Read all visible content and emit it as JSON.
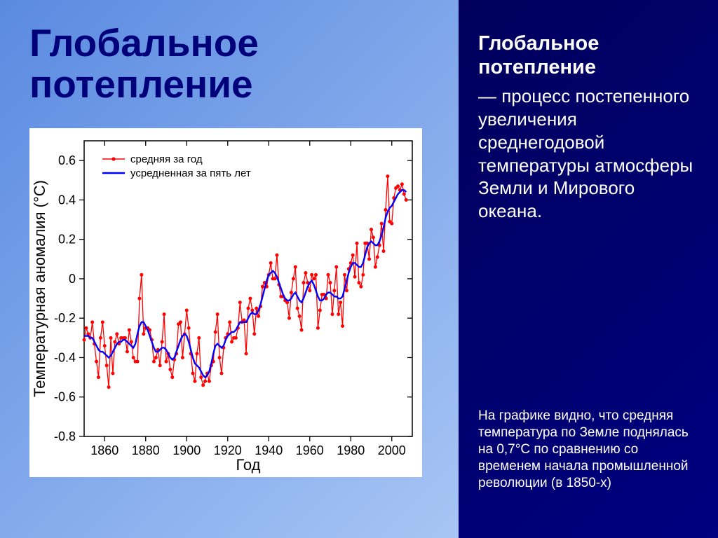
{
  "main_title": "Глобальное потепление",
  "sub_title": "Глобальное потепление",
  "definition_suffix": " — процесс постепенного увеличения среднегодовой температуры атмосферы Земли и Мирового океана.",
  "caption": "На графике видно, что средняя температура по Земле поднялась на 0,7°С по сравнению со временем начала промышленной революции (в 1850-х)",
  "chart": {
    "type": "line",
    "ylabel": "Температурная аномалия (°C)",
    "xlabel": "Год",
    "legend": {
      "series_a": "средняя за год",
      "series_b": "усредненная за пять лет"
    },
    "xlim": [
      1850,
      2010
    ],
    "ylim": [
      -0.8,
      0.7
    ],
    "xticks": [
      1860,
      1880,
      1900,
      1920,
      1940,
      1960,
      1980,
      2000
    ],
    "yticks": [
      -0.8,
      -0.6,
      -0.4,
      -0.2,
      0,
      0.2,
      0.4,
      0.6
    ],
    "colors": {
      "annual": "#ff0000",
      "smoothed": "#0000ff",
      "axis": "#000000",
      "background": "#ffffff",
      "marker_fill": "#ff0000"
    },
    "line_width_annual": 1.3,
    "line_width_smooth": 2.4,
    "marker_radius": 2.2,
    "data": {
      "years": [
        1850,
        1851,
        1852,
        1853,
        1854,
        1855,
        1856,
        1857,
        1858,
        1859,
        1860,
        1861,
        1862,
        1863,
        1864,
        1865,
        1866,
        1867,
        1868,
        1869,
        1870,
        1871,
        1872,
        1873,
        1874,
        1875,
        1876,
        1877,
        1878,
        1879,
        1880,
        1881,
        1882,
        1883,
        1884,
        1885,
        1886,
        1887,
        1888,
        1889,
        1890,
        1891,
        1892,
        1893,
        1894,
        1895,
        1896,
        1897,
        1898,
        1899,
        1900,
        1901,
        1902,
        1903,
        1904,
        1905,
        1906,
        1907,
        1908,
        1909,
        1910,
        1911,
        1912,
        1913,
        1914,
        1915,
        1916,
        1917,
        1918,
        1919,
        1920,
        1921,
        1922,
        1923,
        1924,
        1925,
        1926,
        1927,
        1928,
        1929,
        1930,
        1931,
        1932,
        1933,
        1934,
        1935,
        1936,
        1937,
        1938,
        1939,
        1940,
        1941,
        1942,
        1943,
        1944,
        1945,
        1946,
        1947,
        1948,
        1949,
        1950,
        1951,
        1952,
        1953,
        1954,
        1955,
        1956,
        1957,
        1958,
        1959,
        1960,
        1961,
        1962,
        1963,
        1964,
        1965,
        1966,
        1967,
        1968,
        1969,
        1970,
        1971,
        1972,
        1973,
        1974,
        1975,
        1976,
        1977,
        1978,
        1979,
        1980,
        1981,
        1982,
        1983,
        1984,
        1985,
        1986,
        1987,
        1988,
        1989,
        1990,
        1991,
        1992,
        1993,
        1994,
        1995,
        1996,
        1997,
        1998,
        1999,
        2000,
        2001,
        2002,
        2003,
        2004,
        2005,
        2006,
        2007
      ],
      "annual": [
        -0.31,
        -0.25,
        -0.28,
        -0.3,
        -0.22,
        -0.33,
        -0.42,
        -0.5,
        -0.3,
        -0.22,
        -0.34,
        -0.44,
        -0.55,
        -0.3,
        -0.48,
        -0.32,
        -0.28,
        -0.33,
        -0.3,
        -0.3,
        -0.3,
        -0.37,
        -0.26,
        -0.32,
        -0.4,
        -0.42,
        -0.42,
        -0.1,
        0.02,
        -0.28,
        -0.25,
        -0.25,
        -0.26,
        -0.31,
        -0.42,
        -0.4,
        -0.36,
        -0.44,
        -0.32,
        -0.18,
        -0.42,
        -0.38,
        -0.46,
        -0.5,
        -0.41,
        -0.38,
        -0.23,
        -0.22,
        -0.4,
        -0.28,
        -0.16,
        -0.25,
        -0.38,
        -0.48,
        -0.52,
        -0.38,
        -0.3,
        -0.5,
        -0.54,
        -0.52,
        -0.48,
        -0.52,
        -0.44,
        -0.42,
        -0.27,
        -0.18,
        -0.4,
        -0.48,
        -0.35,
        -0.3,
        -0.28,
        -0.22,
        -0.32,
        -0.3,
        -0.3,
        -0.25,
        -0.12,
        -0.22,
        -0.21,
        -0.38,
        -0.15,
        -0.1,
        -0.16,
        -0.28,
        -0.15,
        -0.19,
        -0.14,
        -0.04,
        -0.02,
        -0.04,
        0.02,
        0.08,
        0.0,
        0.0,
        0.12,
        -0.03,
        -0.09,
        -0.09,
        -0.11,
        -0.12,
        -0.2,
        -0.07,
        0.0,
        0.06,
        -0.15,
        -0.19,
        -0.26,
        -0.02,
        0.03,
        -0.02,
        -0.06,
        0.02,
        0.0,
        0.02,
        -0.25,
        -0.16,
        -0.08,
        -0.08,
        -0.1,
        0.02,
        -0.02,
        -0.18,
        -0.06,
        0.06,
        -0.18,
        -0.12,
        -0.24,
        0.02,
        -0.06,
        0.05,
        0.08,
        0.12,
        0.01,
        0.18,
        -0.02,
        -0.04,
        0.02,
        0.18,
        0.18,
        0.1,
        0.25,
        0.21,
        0.06,
        0.11,
        0.17,
        0.28,
        0.14,
        0.35,
        0.52,
        0.29,
        0.28,
        0.41,
        0.46,
        0.47,
        0.45,
        0.48,
        0.43,
        0.4
      ],
      "smoothed": [
        -0.29,
        -0.29,
        -0.29,
        -0.3,
        -0.3,
        -0.32,
        -0.34,
        -0.36,
        -0.37,
        -0.37,
        -0.38,
        -0.39,
        -0.4,
        -0.39,
        -0.37,
        -0.35,
        -0.33,
        -0.32,
        -0.32,
        -0.31,
        -0.31,
        -0.32,
        -0.33,
        -0.34,
        -0.35,
        -0.33,
        -0.28,
        -0.24,
        -0.22,
        -0.22,
        -0.24,
        -0.26,
        -0.29,
        -0.32,
        -0.35,
        -0.37,
        -0.37,
        -0.36,
        -0.35,
        -0.35,
        -0.36,
        -0.38,
        -0.4,
        -0.41,
        -0.4,
        -0.37,
        -0.34,
        -0.31,
        -0.29,
        -0.28,
        -0.29,
        -0.32,
        -0.36,
        -0.4,
        -0.43,
        -0.44,
        -0.45,
        -0.47,
        -0.49,
        -0.5,
        -0.49,
        -0.47,
        -0.43,
        -0.38,
        -0.34,
        -0.33,
        -0.34,
        -0.35,
        -0.34,
        -0.31,
        -0.29,
        -0.28,
        -0.27,
        -0.27,
        -0.26,
        -0.24,
        -0.22,
        -0.22,
        -0.22,
        -0.22,
        -0.2,
        -0.18,
        -0.17,
        -0.18,
        -0.18,
        -0.16,
        -0.13,
        -0.09,
        -0.05,
        -0.01,
        0.02,
        0.03,
        0.04,
        0.03,
        0.01,
        -0.02,
        -0.05,
        -0.08,
        -0.1,
        -0.11,
        -0.11,
        -0.1,
        -0.08,
        -0.07,
        -0.09,
        -0.11,
        -0.12,
        -0.1,
        -0.07,
        -0.04,
        -0.02,
        -0.01,
        -0.03,
        -0.06,
        -0.09,
        -0.11,
        -0.11,
        -0.1,
        -0.08,
        -0.07,
        -0.07,
        -0.08,
        -0.09,
        -0.09,
        -0.1,
        -0.1,
        -0.09,
        -0.05,
        -0.01,
        0.03,
        0.06,
        0.08,
        0.08,
        0.07,
        0.06,
        0.06,
        0.08,
        0.12,
        0.16,
        0.18,
        0.19,
        0.18,
        0.17,
        0.17,
        0.19,
        0.22,
        0.26,
        0.31,
        0.34,
        0.36,
        0.37,
        0.39,
        0.41,
        0.43,
        0.44,
        0.45,
        0.45,
        0.44
      ]
    }
  }
}
